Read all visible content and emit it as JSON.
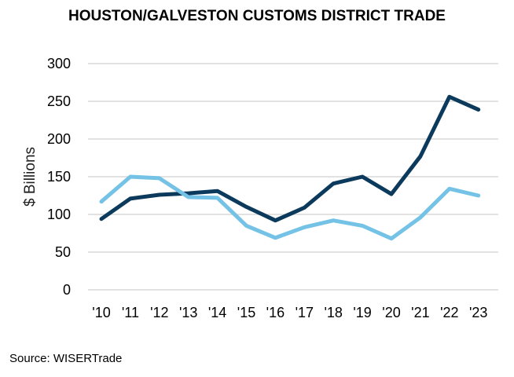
{
  "chart_data": {
    "type": "line",
    "title": "HOUSTON/GALVESTON CUSTOMS DISTRICT TRADE",
    "xlabel": "",
    "ylabel": "$ Billions",
    "categories": [
      "'10",
      "'11",
      "'12",
      "'13",
      "'14",
      "'15",
      "'16",
      "'17",
      "'18",
      "'19",
      "'20",
      "'21",
      "'22",
      "'23"
    ],
    "ylim": [
      0,
      300
    ],
    "yticks": [
      0,
      50,
      100,
      150,
      200,
      250,
      300
    ],
    "grid": true,
    "legend": "none",
    "series": [
      {
        "color": "#0b3a5c",
        "values": [
          94,
          121,
          126,
          128,
          131,
          110,
          92,
          109,
          141,
          150,
          127,
          177,
          256,
          239
        ]
      },
      {
        "color": "#74c2e6",
        "values": [
          117,
          150,
          148,
          123,
          122,
          85,
          69,
          83,
          92,
          85,
          68,
          96,
          134,
          125
        ]
      }
    ]
  },
  "source": "Source: WISERTrade"
}
